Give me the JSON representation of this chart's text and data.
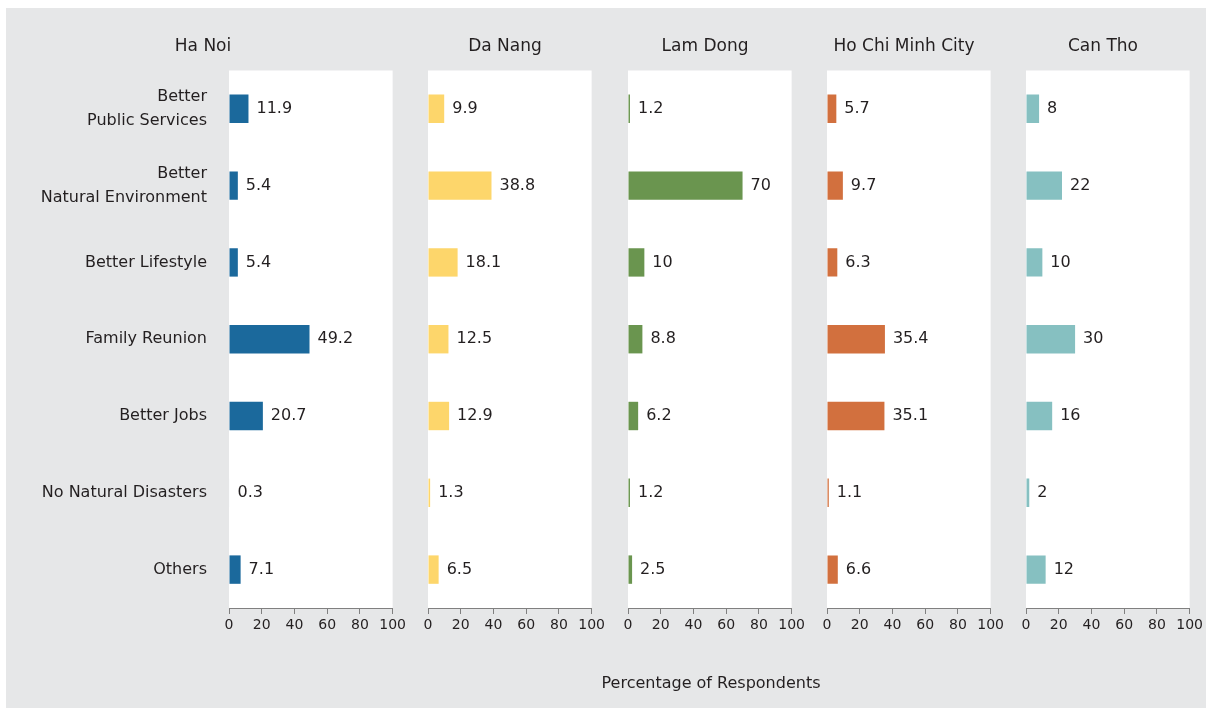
{
  "chart_data": [
    {
      "type": "bar",
      "orientation": "horizontal",
      "title": "Ha Noi",
      "categories": [
        "Better Public Services",
        "Better Natural Environment",
        "Better Lifestyle",
        "Family Reunion",
        "Better Jobs",
        "No Natural Disasters",
        "Others"
      ],
      "values": [
        11.9,
        5.4,
        5.4,
        49.2,
        20.7,
        0.3,
        7.1
      ],
      "color": "#1b699c",
      "xlim": [
        0,
        100
      ],
      "xticks": [
        0,
        20,
        40,
        60,
        80,
        100
      ],
      "data_labels": true
    },
    {
      "type": "bar",
      "orientation": "horizontal",
      "title": "Da Nang",
      "categories": [
        null,
        null,
        null,
        null,
        null,
        null,
        null
      ],
      "values": [
        9.9,
        38.8,
        18.1,
        12.5,
        12.9,
        1.3,
        6.5
      ],
      "color": "#fdd66b",
      "xlim": [
        0,
        100
      ],
      "xticks": [
        0,
        20,
        40,
        60,
        80,
        100
      ],
      "data_labels": true,
      "tick_labels": "x"
    },
    {
      "type": "bar",
      "orientation": "horizontal",
      "title": "Lam Dong",
      "xlabel": "Percentage of Respondents",
      "categories": [
        null,
        null,
        null,
        null,
        null,
        null,
        null
      ],
      "values": [
        1.2,
        70,
        10,
        8.8,
        6.2,
        1.2,
        2.5
      ],
      "color": "#6a954f",
      "xlim": [
        0,
        100
      ],
      "xticks": [
        0,
        20,
        40,
        60,
        80,
        100
      ],
      "data_labels": true,
      "tick_labels": "x"
    },
    {
      "type": "bar",
      "orientation": "horizontal",
      "title": "Ho Chi Minh City",
      "categories": [
        null,
        null,
        null,
        null,
        null,
        null,
        null
      ],
      "values": [
        5.7,
        9.7,
        6.3,
        35.4,
        35.1,
        1.1,
        6.6
      ],
      "color": "#d2703e",
      "xlim": [
        0,
        100
      ],
      "xticks": [
        0,
        20,
        40,
        60,
        80,
        100
      ],
      "data_labels": true,
      "tick_labels": "x"
    },
    {
      "type": "bar",
      "orientation": "horizontal",
      "title": "Can Tho",
      "categories": [
        null,
        null,
        null,
        null,
        null,
        null,
        null
      ],
      "values": [
        8,
        22,
        10,
        30,
        16,
        2,
        12
      ],
      "color": "#86c0c1",
      "xlim": [
        0,
        100
      ],
      "xticks": [
        0,
        20,
        40,
        60,
        80,
        100
      ],
      "data_labels": true,
      "tick_labels": "x"
    }
  ]
}
